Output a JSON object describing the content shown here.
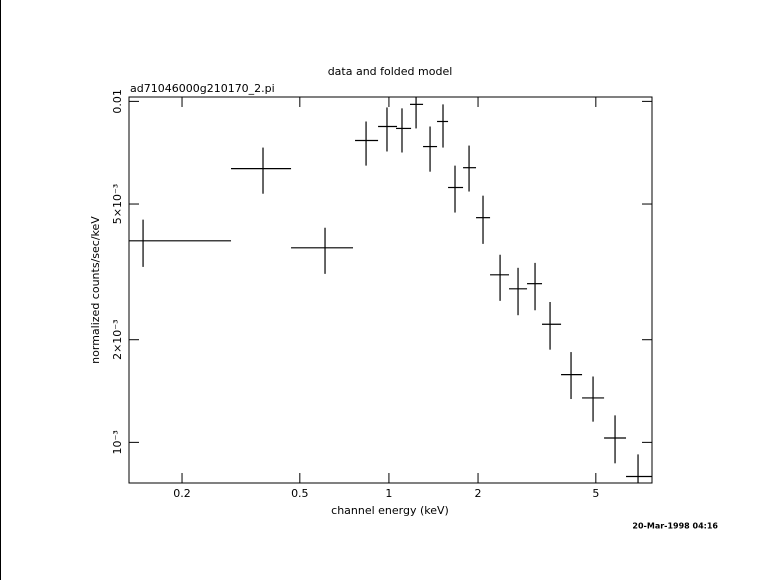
{
  "chart_data": {
    "type": "errorbar",
    "title": "data and folded model",
    "subtitle": "ad71046000g210170_2.pi",
    "x_label": "channel energy (keV)",
    "y_label": "normalized counts/sec/keV",
    "timestamp": "20-Mar-1998 04:16",
    "log_x": true,
    "log_y": true,
    "color": "#000000",
    "xlim": [
      0.1324,
      7.74
    ],
    "ylim": [
      0.00076,
      0.0103
    ],
    "xticks": [
      0.2,
      0.5,
      1,
      2,
      5
    ],
    "yticks": [
      {
        "value": 0.001,
        "label": "10⁻³"
      },
      {
        "value": 0.002,
        "label": "2×10⁻³"
      },
      {
        "value": 0.005,
        "label": "5×10⁻³"
      },
      0.01
    ],
    "x": [
      0.1477,
      0.3755,
      0.6083,
      0.837,
      0.985,
      1.107,
      1.235,
      1.377,
      1.523,
      1.672,
      1.865,
      2.079,
      2.374,
      2.73,
      3.116,
      3.502,
      4.123,
      4.893,
      5.806,
      6.943
    ],
    "x_lo": [
      0.1324,
      0.2928,
      0.467,
      0.7683,
      0.919,
      1.057,
      1.178,
      1.304,
      1.454,
      1.584,
      1.78,
      1.969,
      2.196,
      2.545,
      2.928,
      3.29,
      3.815,
      4.492,
      5.331,
      6.324
    ],
    "x_hi": [
      0.2928,
      0.467,
      0.7563,
      0.919,
      1.065,
      1.188,
      1.304,
      1.454,
      1.584,
      1.78,
      1.969,
      2.196,
      2.545,
      2.928,
      3.29,
      3.815,
      4.492,
      5.331,
      6.324,
      7.74
    ],
    "values": [
      0.0039,
      0.00635,
      0.00372,
      0.00768,
      0.00844,
      0.00833,
      0.0098,
      0.00737,
      0.00873,
      0.00559,
      0.00639,
      0.00456,
      0.0031,
      0.00282,
      0.00292,
      0.00222,
      0.00158,
      0.00135,
      0.00103,
      0.000794
    ],
    "y_lo": [
      0.00327,
      0.00536,
      0.00312,
      0.00648,
      0.00713,
      0.00708,
      0.00833,
      0.00622,
      0.00732,
      0.00472,
      0.00544,
      0.00382,
      0.0026,
      0.00236,
      0.00244,
      0.00187,
      0.00134,
      0.00115,
      0.000868,
      0.00072
    ],
    "y_hi": [
      0.0045,
      0.00732,
      0.00426,
      0.00873,
      0.0096,
      0.00954,
      0.0105,
      0.00844,
      0.0098,
      0.00648,
      0.00742,
      0.00529,
      0.00355,
      0.00325,
      0.00336,
      0.00258,
      0.00184,
      0.00156,
      0.0012,
      0.000922
    ]
  }
}
